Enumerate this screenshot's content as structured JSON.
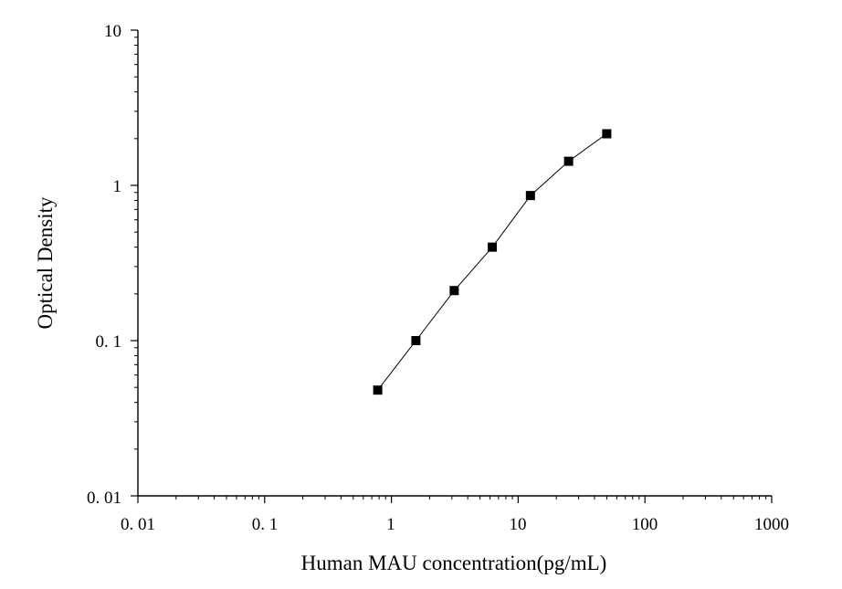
{
  "chart_data": {
    "type": "scatter",
    "title": "",
    "xlabel": "Human MAU concentration(pg/mL)",
    "ylabel": "Optical Density",
    "xscale": "log",
    "yscale": "log",
    "xlim": [
      0.01,
      1000
    ],
    "ylim": [
      0.01,
      10
    ],
    "x_tick_labels": [
      "0. 01",
      "0. 1",
      "1",
      "10",
      "100",
      "1000"
    ],
    "y_tick_labels": [
      "0. 01",
      "0. 1",
      "1",
      "10"
    ],
    "grid": false,
    "legend": "none",
    "marker": "square",
    "line": "connected",
    "marker_color": "#000000",
    "series": [
      {
        "x": [
          0.78,
          1.56,
          3.13,
          6.25,
          12.5,
          25,
          50
        ],
        "y": [
          0.048,
          0.1,
          0.21,
          0.4,
          0.86,
          1.43,
          2.15
        ]
      }
    ]
  }
}
